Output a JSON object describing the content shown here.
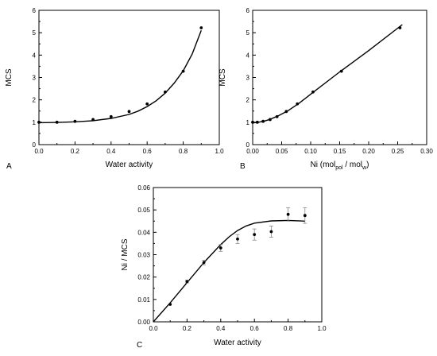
{
  "colors": {
    "axis": "#000000",
    "marker": "#000000",
    "fit": "#000000",
    "error_bar": "#888888"
  },
  "chart_data": [
    {
      "panel_label": "A",
      "type": "scatter",
      "xlabel": "Water activity",
      "ylabel": "MCS",
      "xlim": [
        0.0,
        1.0
      ],
      "ylim": [
        0,
        6
      ],
      "xticks": [
        "0.0",
        "0.2",
        "0.4",
        "0.6",
        "0.8",
        "1.0"
      ],
      "yticks": [
        "0",
        "1",
        "2",
        "3",
        "4",
        "5",
        "6"
      ],
      "grid": false,
      "points": [
        {
          "x": 0.0,
          "y": 1.0
        },
        {
          "x": 0.1,
          "y": 1.0
        },
        {
          "x": 0.2,
          "y": 1.04
        },
        {
          "x": 0.3,
          "y": 1.12
        },
        {
          "x": 0.4,
          "y": 1.25
        },
        {
          "x": 0.5,
          "y": 1.48
        },
        {
          "x": 0.6,
          "y": 1.82
        },
        {
          "x": 0.7,
          "y": 2.35
        },
        {
          "x": 0.8,
          "y": 3.28
        },
        {
          "x": 0.9,
          "y": 5.22
        }
      ],
      "fit_line": [
        {
          "x": 0.0,
          "y": 0.98
        },
        {
          "x": 0.1,
          "y": 0.99
        },
        {
          "x": 0.2,
          "y": 1.02
        },
        {
          "x": 0.3,
          "y": 1.07
        },
        {
          "x": 0.4,
          "y": 1.17
        },
        {
          "x": 0.5,
          "y": 1.35
        },
        {
          "x": 0.55,
          "y": 1.5
        },
        {
          "x": 0.6,
          "y": 1.7
        },
        {
          "x": 0.65,
          "y": 1.96
        },
        {
          "x": 0.7,
          "y": 2.3
        },
        {
          "x": 0.75,
          "y": 2.75
        },
        {
          "x": 0.8,
          "y": 3.3
        },
        {
          "x": 0.85,
          "y": 4.05
        },
        {
          "x": 0.9,
          "y": 5.1
        }
      ]
    },
    {
      "panel_label": "B",
      "type": "scatter",
      "xlabel_parts": [
        "Ni (mol",
        "pol",
        " / mol",
        "w",
        ")"
      ],
      "ylabel": "MCS",
      "xlim": [
        0.0,
        0.3
      ],
      "ylim": [
        0,
        6
      ],
      "xticks": [
        "0.00",
        "0.05",
        "0.10",
        "0.15",
        "0.20",
        "0.25",
        "0.30"
      ],
      "yticks": [
        "0",
        "1",
        "2",
        "3",
        "4",
        "5",
        "6"
      ],
      "grid": false,
      "points": [
        {
          "x": 0.0,
          "y": 1.0
        },
        {
          "x": 0.008,
          "y": 1.0
        },
        {
          "x": 0.018,
          "y": 1.04
        },
        {
          "x": 0.03,
          "y": 1.12
        },
        {
          "x": 0.042,
          "y": 1.25
        },
        {
          "x": 0.058,
          "y": 1.48
        },
        {
          "x": 0.077,
          "y": 1.82
        },
        {
          "x": 0.104,
          "y": 2.35
        },
        {
          "x": 0.153,
          "y": 3.28
        },
        {
          "x": 0.254,
          "y": 5.22
        }
      ],
      "fit_line": [
        {
          "x": 0.0,
          "y": 0.97
        },
        {
          "x": 0.01,
          "y": 1.0
        },
        {
          "x": 0.02,
          "y": 1.05
        },
        {
          "x": 0.03,
          "y": 1.13
        },
        {
          "x": 0.045,
          "y": 1.3
        },
        {
          "x": 0.06,
          "y": 1.5
        },
        {
          "x": 0.08,
          "y": 1.85
        },
        {
          "x": 0.1,
          "y": 2.25
        },
        {
          "x": 0.15,
          "y": 3.25
        },
        {
          "x": 0.2,
          "y": 4.2
        },
        {
          "x": 0.258,
          "y": 5.36
        }
      ]
    },
    {
      "panel_label": "C",
      "type": "scatter",
      "xlabel": "Water activity",
      "ylabel": "Ni / MCS",
      "xlim": [
        0.0,
        1.0
      ],
      "ylim": [
        0,
        0.06
      ],
      "xticks": [
        "0.0",
        "0.2",
        "0.4",
        "0.6",
        "0.8",
        "1.0"
      ],
      "yticks": [
        "0.00",
        "0.01",
        "0.02",
        "0.03",
        "0.04",
        "0.05",
        "0.06"
      ],
      "grid": false,
      "points": [
        {
          "x": 0.1,
          "y": 0.0078,
          "err": 0.0
        },
        {
          "x": 0.2,
          "y": 0.018,
          "err": 0.0006
        },
        {
          "x": 0.3,
          "y": 0.0265,
          "err": 0.001
        },
        {
          "x": 0.4,
          "y": 0.033,
          "err": 0.0015
        },
        {
          "x": 0.5,
          "y": 0.037,
          "err": 0.002
        },
        {
          "x": 0.6,
          "y": 0.039,
          "err": 0.0025
        },
        {
          "x": 0.7,
          "y": 0.0403,
          "err": 0.0025
        },
        {
          "x": 0.8,
          "y": 0.048,
          "err": 0.003
        },
        {
          "x": 0.9,
          "y": 0.0475,
          "err": 0.0035
        }
      ],
      "fit_line": [
        {
          "x": 0.0,
          "y": 0.0
        },
        {
          "x": 0.1,
          "y": 0.0085
        },
        {
          "x": 0.2,
          "y": 0.0175
        },
        {
          "x": 0.3,
          "y": 0.0265
        },
        {
          "x": 0.4,
          "y": 0.0345
        },
        {
          "x": 0.45,
          "y": 0.038
        },
        {
          "x": 0.5,
          "y": 0.0408
        },
        {
          "x": 0.55,
          "y": 0.0428
        },
        {
          "x": 0.6,
          "y": 0.0441
        },
        {
          "x": 0.7,
          "y": 0.0451
        },
        {
          "x": 0.8,
          "y": 0.0453
        },
        {
          "x": 0.9,
          "y": 0.045
        }
      ]
    }
  ]
}
